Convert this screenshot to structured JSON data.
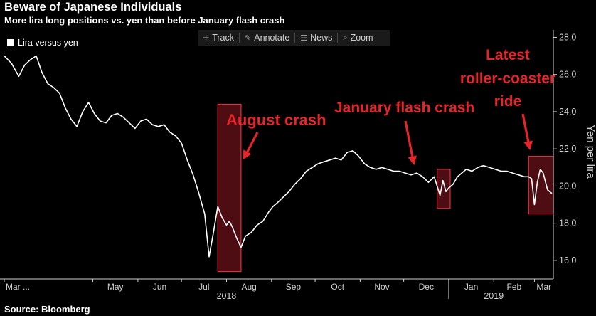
{
  "title": "Beware of Japanese Individuals",
  "subtitle": "More lira long positions vs. yen than before January flash crash",
  "source": "Source: Bloomberg",
  "toolbar": {
    "track": "Track",
    "annotate": "Annotate",
    "news": "News",
    "zoom": "Zoom"
  },
  "colors": {
    "background": "#000000",
    "line": "#ffffff",
    "annotation": "#e8242b",
    "highlight_fill": "#5c0f16",
    "highlight_border": "#d8323c",
    "axis": "#cfcfcf"
  },
  "chart_data": {
    "type": "line",
    "title": "Beware of Japanese Individuals",
    "subtitle": "More lira long positions vs. yen than before January flash crash",
    "ylabel": "Yen per lira",
    "ylim": [
      15,
      28.4
    ],
    "y_ticks": [
      "16.0",
      "18.0",
      "20.0",
      "22.0",
      "24.0",
      "26.0",
      "28.0"
    ],
    "x_ticks": [
      "Mar ...",
      "May",
      "Jun",
      "Jul",
      "Aug",
      "Sep",
      "Oct",
      "Nov",
      "Dec",
      "Jan",
      "Feb",
      "Mar"
    ],
    "x_tick_days": [
      0,
      61,
      92,
      122,
      153,
      184,
      214,
      245,
      275,
      306,
      337,
      365
    ],
    "year_labels": [
      {
        "label": "2018",
        "day": 153
      },
      {
        "label": "2019",
        "day": 337
      }
    ],
    "legend": [
      "Lira versus yen"
    ],
    "series": [
      {
        "name": "Lira versus yen",
        "x_days": [
          0,
          5,
          10,
          14,
          18,
          22,
          26,
          30,
          34,
          38,
          42,
          46,
          50,
          54,
          58,
          62,
          66,
          70,
          74,
          78,
          82,
          86,
          90,
          94,
          98,
          102,
          106,
          110,
          114,
          118,
          122,
          126,
          130,
          134,
          138,
          141,
          144,
          147,
          150,
          153,
          155,
          157,
          160,
          163,
          166,
          170,
          174,
          178,
          182,
          185,
          188,
          192,
          196,
          200,
          204,
          208,
          212,
          216,
          220,
          224,
          228,
          232,
          236,
          240,
          244,
          248,
          252,
          256,
          260,
          264,
          268,
          272,
          276,
          280,
          284,
          288,
          292,
          296,
          298,
          300,
          302,
          304,
          306,
          309,
          312,
          315,
          318,
          322,
          326,
          330,
          334,
          338,
          342,
          346,
          350,
          354,
          358,
          361,
          363,
          365,
          367,
          369,
          371,
          374,
          377
        ],
        "values": [
          27.0,
          26.6,
          25.9,
          26.5,
          26.8,
          27.0,
          26.1,
          25.5,
          25.3,
          25.0,
          24.2,
          23.6,
          23.2,
          24.0,
          24.5,
          23.9,
          23.5,
          23.4,
          23.8,
          23.9,
          23.7,
          23.4,
          23.1,
          23.5,
          23.6,
          23.3,
          23.2,
          23.3,
          22.9,
          22.7,
          22.3,
          21.4,
          20.6,
          19.6,
          18.5,
          16.2,
          17.5,
          18.9,
          18.3,
          17.9,
          18.1,
          17.8,
          17.2,
          16.7,
          17.3,
          17.5,
          17.9,
          18.1,
          18.6,
          18.9,
          19.1,
          19.4,
          19.7,
          20.1,
          20.4,
          20.8,
          21.0,
          21.2,
          21.3,
          21.4,
          21.5,
          21.4,
          21.8,
          21.9,
          21.6,
          21.2,
          21.0,
          20.9,
          21.0,
          20.9,
          20.8,
          20.8,
          20.7,
          20.6,
          20.7,
          20.5,
          20.2,
          20.5,
          20.0,
          19.5,
          20.3,
          19.7,
          19.9,
          20.1,
          20.5,
          20.7,
          20.9,
          20.8,
          21.0,
          21.1,
          21.0,
          20.9,
          20.8,
          20.8,
          20.7,
          20.6,
          20.5,
          20.5,
          20.4,
          19.0,
          20.2,
          20.9,
          20.7,
          19.8,
          19.6
        ]
      }
    ],
    "annotations": [
      {
        "text": "August crash",
        "day_start": 147,
        "day_end": 163,
        "y_low": 15.4,
        "y_high": 24.4
      },
      {
        "text": "January flash crash",
        "day_start": 298,
        "day_end": 307,
        "y_low": 18.8,
        "y_high": 20.9
      },
      {
        "text": [
          "Latest",
          "roller-coaster",
          "ride"
        ],
        "day_start": 361,
        "day_end": 378,
        "y_low": 18.5,
        "y_high": 21.6
      }
    ]
  }
}
